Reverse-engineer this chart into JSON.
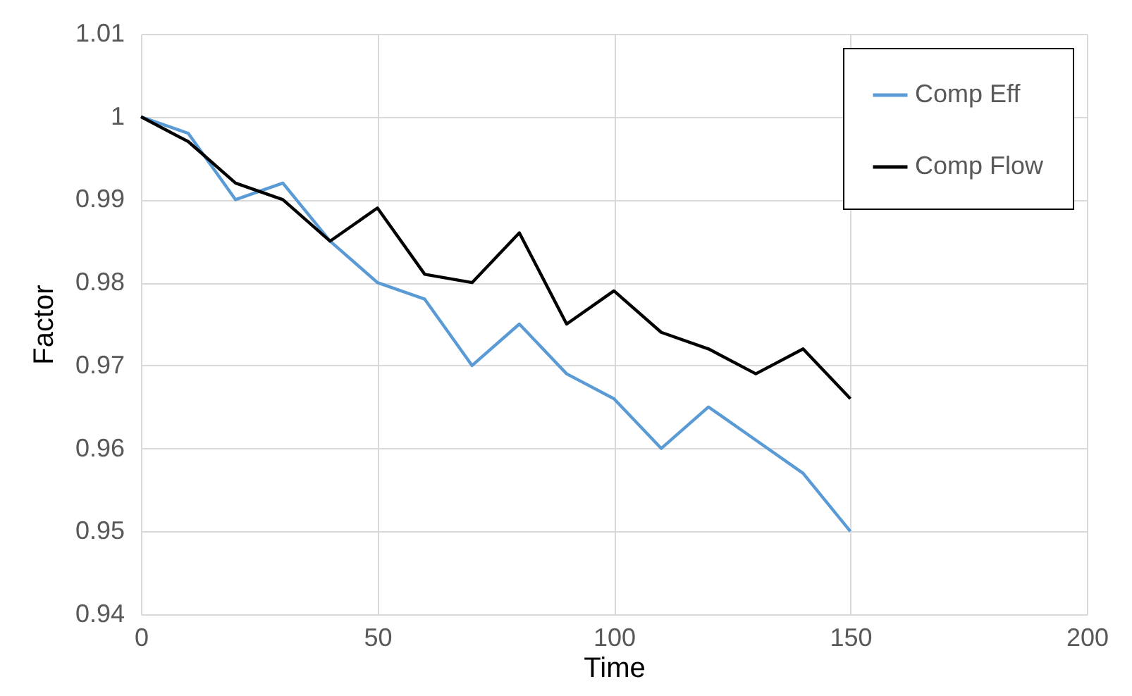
{
  "chart_data": {
    "type": "line",
    "xlabel": "Time",
    "ylabel": "Factor",
    "x": [
      0,
      10,
      20,
      30,
      40,
      50,
      60,
      70,
      80,
      90,
      100,
      110,
      120,
      130,
      140,
      150
    ],
    "series": [
      {
        "name": "Comp Eff",
        "color": "#5b9bd5",
        "values": [
          1,
          0.998,
          0.99,
          0.992,
          0.985,
          0.98,
          0.978,
          0.97,
          0.975,
          0.969,
          0.966,
          0.96,
          0.965,
          0.961,
          0.957,
          0.95
        ]
      },
      {
        "name": "Comp Flow",
        "color": "#000000",
        "values": [
          1,
          0.997,
          0.992,
          0.99,
          0.985,
          0.989,
          0.981,
          0.98,
          0.986,
          0.975,
          0.979,
          0.974,
          0.972,
          0.969,
          0.972,
          0.966
        ]
      }
    ],
    "xlim": [
      0,
      200
    ],
    "xticks": [
      0,
      50,
      100,
      150,
      200
    ],
    "ylim": [
      0.94,
      1.01
    ],
    "yticks": [
      0.94,
      0.95,
      0.96,
      0.97,
      0.98,
      0.99,
      1,
      1.01
    ],
    "grid": true,
    "legend": "top right"
  }
}
